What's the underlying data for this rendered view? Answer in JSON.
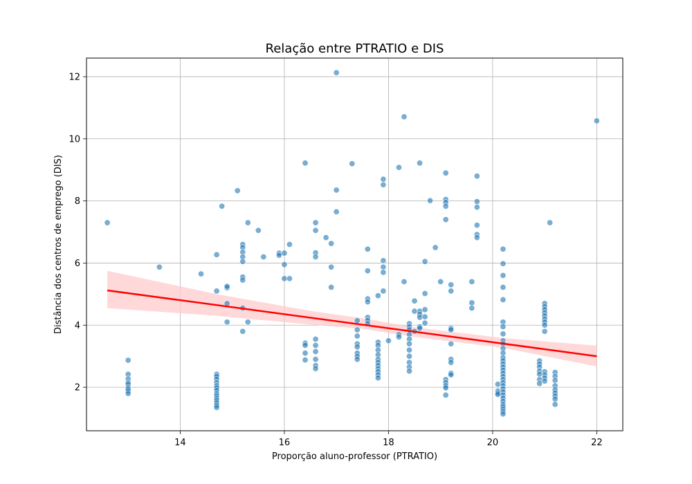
{
  "chart_data": {
    "type": "scatter",
    "title": "Relação entre PTRATIO e DIS",
    "xlabel": "Proporção aluno-professor (PTRATIO)",
    "ylabel": "Distância dos centros de emprego (DIS)",
    "xlim": [
      12.2,
      22.5
    ],
    "ylim": [
      0.6,
      12.6
    ],
    "xticks": [
      14,
      16,
      18,
      20,
      22
    ],
    "yticks": [
      2,
      4,
      6,
      8,
      10,
      12
    ],
    "grid": true,
    "colors": {
      "points": "#1f77b4",
      "regression_line": "#ff0000",
      "confidence_band": "#ffcccc"
    },
    "regression": {
      "x": [
        12.6,
        22.0
      ],
      "y": [
        5.12,
        3.0
      ],
      "ci_x": [
        12.6,
        14.7,
        16.5,
        17.5,
        18.5,
        20.2,
        22.0
      ],
      "ci_lower": [
        4.55,
        4.3,
        4.02,
        3.88,
        3.62,
        3.27,
        2.67
      ],
      "ci_upper": [
        5.75,
        5.0,
        4.46,
        4.22,
        3.93,
        3.59,
        3.34
      ]
    },
    "points": [
      [
        12.6,
        7.3
      ],
      [
        13.0,
        2.87
      ],
      [
        13.0,
        2.42
      ],
      [
        13.0,
        2.27
      ],
      [
        13.0,
        2.15
      ],
      [
        13.0,
        2.1
      ],
      [
        13.0,
        2.0
      ],
      [
        13.0,
        1.95
      ],
      [
        13.0,
        1.88
      ],
      [
        13.0,
        1.8
      ],
      [
        13.6,
        5.87
      ],
      [
        14.4,
        5.65
      ],
      [
        14.7,
        6.27
      ],
      [
        14.7,
        5.1
      ],
      [
        14.7,
        2.42
      ],
      [
        14.7,
        2.35
      ],
      [
        14.7,
        2.26
      ],
      [
        14.7,
        2.15
      ],
      [
        14.7,
        2.05
      ],
      [
        14.7,
        1.98
      ],
      [
        14.7,
        1.9
      ],
      [
        14.7,
        1.8
      ],
      [
        14.7,
        1.73
      ],
      [
        14.7,
        1.65
      ],
      [
        14.7,
        1.58
      ],
      [
        14.7,
        1.5
      ],
      [
        14.7,
        1.42
      ],
      [
        14.7,
        1.35
      ],
      [
        14.8,
        7.83
      ],
      [
        14.9,
        5.2
      ],
      [
        14.9,
        5.25
      ],
      [
        14.9,
        4.7
      ],
      [
        14.9,
        4.1
      ],
      [
        15.1,
        8.33
      ],
      [
        15.2,
        6.6
      ],
      [
        15.2,
        6.5
      ],
      [
        15.2,
        6.35
      ],
      [
        15.2,
        6.2
      ],
      [
        15.2,
        6.05
      ],
      [
        15.2,
        5.55
      ],
      [
        15.2,
        5.45
      ],
      [
        15.2,
        4.55
      ],
      [
        15.2,
        3.8
      ],
      [
        15.3,
        7.3
      ],
      [
        15.3,
        4.1
      ],
      [
        15.5,
        7.05
      ],
      [
        15.6,
        6.2
      ],
      [
        15.9,
        6.32
      ],
      [
        15.9,
        6.25
      ],
      [
        16.0,
        6.32
      ],
      [
        16.0,
        5.95
      ],
      [
        16.0,
        5.5
      ],
      [
        16.1,
        6.6
      ],
      [
        16.1,
        5.5
      ],
      [
        16.4,
        9.22
      ],
      [
        16.4,
        3.42
      ],
      [
        16.4,
        3.35
      ],
      [
        16.4,
        3.1
      ],
      [
        16.4,
        2.88
      ],
      [
        16.6,
        7.3
      ],
      [
        16.6,
        7.05
      ],
      [
        16.6,
        6.33
      ],
      [
        16.6,
        6.2
      ],
      [
        16.6,
        3.55
      ],
      [
        16.6,
        3.35
      ],
      [
        16.6,
        3.15
      ],
      [
        16.6,
        2.9
      ],
      [
        16.6,
        2.7
      ],
      [
        16.6,
        2.6
      ],
      [
        16.8,
        6.82
      ],
      [
        16.9,
        6.63
      ],
      [
        16.9,
        5.87
      ],
      [
        16.9,
        5.22
      ],
      [
        17.0,
        12.13
      ],
      [
        17.0,
        8.35
      ],
      [
        17.0,
        7.65
      ],
      [
        17.3,
        9.2
      ],
      [
        17.4,
        4.15
      ],
      [
        17.4,
        3.85
      ],
      [
        17.4,
        3.65
      ],
      [
        17.4,
        3.4
      ],
      [
        17.4,
        3.3
      ],
      [
        17.4,
        3.1
      ],
      [
        17.4,
        3.0
      ],
      [
        17.4,
        2.9
      ],
      [
        17.6,
        6.45
      ],
      [
        17.6,
        5.75
      ],
      [
        17.6,
        4.85
      ],
      [
        17.6,
        4.75
      ],
      [
        17.6,
        4.25
      ],
      [
        17.6,
        4.15
      ],
      [
        17.6,
        4.05
      ],
      [
        17.8,
        4.95
      ],
      [
        17.8,
        3.45
      ],
      [
        17.8,
        3.35
      ],
      [
        17.8,
        3.2
      ],
      [
        17.8,
        3.05
      ],
      [
        17.8,
        2.9
      ],
      [
        17.8,
        2.8
      ],
      [
        17.8,
        2.7
      ],
      [
        17.8,
        2.6
      ],
      [
        17.8,
        2.5
      ],
      [
        17.8,
        2.4
      ],
      [
        17.8,
        2.3
      ],
      [
        17.9,
        8.7
      ],
      [
        17.9,
        8.52
      ],
      [
        17.9,
        6.08
      ],
      [
        17.9,
        5.87
      ],
      [
        17.9,
        5.7
      ],
      [
        17.9,
        5.1
      ],
      [
        18.0,
        3.5
      ],
      [
        18.2,
        9.08
      ],
      [
        18.2,
        3.7
      ],
      [
        18.2,
        3.62
      ],
      [
        18.3,
        10.71
      ],
      [
        18.3,
        5.4
      ],
      [
        18.4,
        4.05
      ],
      [
        18.4,
        3.95
      ],
      [
        18.4,
        3.85
      ],
      [
        18.4,
        3.7
      ],
      [
        18.4,
        3.55
      ],
      [
        18.4,
        3.4
      ],
      [
        18.4,
        3.2
      ],
      [
        18.4,
        3.0
      ],
      [
        18.4,
        2.8
      ],
      [
        18.4,
        2.65
      ],
      [
        18.4,
        2.52
      ],
      [
        18.5,
        4.78
      ],
      [
        18.5,
        4.45
      ],
      [
        18.5,
        3.8
      ],
      [
        18.6,
        9.22
      ],
      [
        18.6,
        4.45
      ],
      [
        18.6,
        4.35
      ],
      [
        18.6,
        4.25
      ],
      [
        18.6,
        3.95
      ],
      [
        18.6,
        3.9
      ],
      [
        18.7,
        6.05
      ],
      [
        18.7,
        5.02
      ],
      [
        18.7,
        4.5
      ],
      [
        18.7,
        4.27
      ],
      [
        18.7,
        4.07
      ],
      [
        18.8,
        8.01
      ],
      [
        18.9,
        6.5
      ],
      [
        19.0,
        5.4
      ],
      [
        19.1,
        8.9
      ],
      [
        19.1,
        8.05
      ],
      [
        19.1,
        7.95
      ],
      [
        19.1,
        7.83
      ],
      [
        19.1,
        7.4
      ],
      [
        19.1,
        2.25
      ],
      [
        19.1,
        2.15
      ],
      [
        19.1,
        2.05
      ],
      [
        19.1,
        1.98
      ],
      [
        19.1,
        1.75
      ],
      [
        19.2,
        5.3
      ],
      [
        19.2,
        5.1
      ],
      [
        19.2,
        3.9
      ],
      [
        19.2,
        3.85
      ],
      [
        19.2,
        3.4
      ],
      [
        19.2,
        2.9
      ],
      [
        19.2,
        2.8
      ],
      [
        19.2,
        2.45
      ],
      [
        19.2,
        2.4
      ],
      [
        19.6,
        5.4
      ],
      [
        19.6,
        4.72
      ],
      [
        19.6,
        4.55
      ],
      [
        19.7,
        8.8
      ],
      [
        19.7,
        7.98
      ],
      [
        19.7,
        7.8
      ],
      [
        19.7,
        7.22
      ],
      [
        19.7,
        6.92
      ],
      [
        19.7,
        6.82
      ],
      [
        20.1,
        2.1
      ],
      [
        20.1,
        1.88
      ],
      [
        20.1,
        1.82
      ],
      [
        20.1,
        1.77
      ],
      [
        20.2,
        6.45
      ],
      [
        20.2,
        5.98
      ],
      [
        20.2,
        5.6
      ],
      [
        20.2,
        5.22
      ],
      [
        20.2,
        4.82
      ],
      [
        20.2,
        4.1
      ],
      [
        20.2,
        3.95
      ],
      [
        20.2,
        3.72
      ],
      [
        20.2,
        3.5
      ],
      [
        20.2,
        3.4
      ],
      [
        20.2,
        3.25
      ],
      [
        20.2,
        3.1
      ],
      [
        20.2,
        2.95
      ],
      [
        20.2,
        2.85
      ],
      [
        20.2,
        2.75
      ],
      [
        20.2,
        2.65
      ],
      [
        20.2,
        2.55
      ],
      [
        20.2,
        2.45
      ],
      [
        20.2,
        2.35
      ],
      [
        20.2,
        2.25
      ],
      [
        20.2,
        2.15
      ],
      [
        20.2,
        2.05
      ],
      [
        20.2,
        1.95
      ],
      [
        20.2,
        1.85
      ],
      [
        20.2,
        1.75
      ],
      [
        20.2,
        1.65
      ],
      [
        20.2,
        1.55
      ],
      [
        20.2,
        1.45
      ],
      [
        20.2,
        1.38
      ],
      [
        20.2,
        1.3
      ],
      [
        20.2,
        1.22
      ],
      [
        20.2,
        1.14
      ],
      [
        20.9,
        2.85
      ],
      [
        20.9,
        2.75
      ],
      [
        20.9,
        2.65
      ],
      [
        20.9,
        2.52
      ],
      [
        20.9,
        2.42
      ],
      [
        20.9,
        2.25
      ],
      [
        20.9,
        2.12
      ],
      [
        21.0,
        4.7
      ],
      [
        21.0,
        4.6
      ],
      [
        21.0,
        4.5
      ],
      [
        21.0,
        4.4
      ],
      [
        21.0,
        4.3
      ],
      [
        21.0,
        4.2
      ],
      [
        21.0,
        4.1
      ],
      [
        21.0,
        4.0
      ],
      [
        21.0,
        3.8
      ],
      [
        21.0,
        2.5
      ],
      [
        21.0,
        2.4
      ],
      [
        21.0,
        2.3
      ],
      [
        21.0,
        2.2
      ],
      [
        21.1,
        7.3
      ],
      [
        21.2,
        2.48
      ],
      [
        21.2,
        2.35
      ],
      [
        21.2,
        2.22
      ],
      [
        21.2,
        2.05
      ],
      [
        21.2,
        1.92
      ],
      [
        21.2,
        1.82
      ],
      [
        21.2,
        1.72
      ],
      [
        21.2,
        1.62
      ],
      [
        21.2,
        1.45
      ],
      [
        22.0,
        10.58
      ]
    ]
  }
}
